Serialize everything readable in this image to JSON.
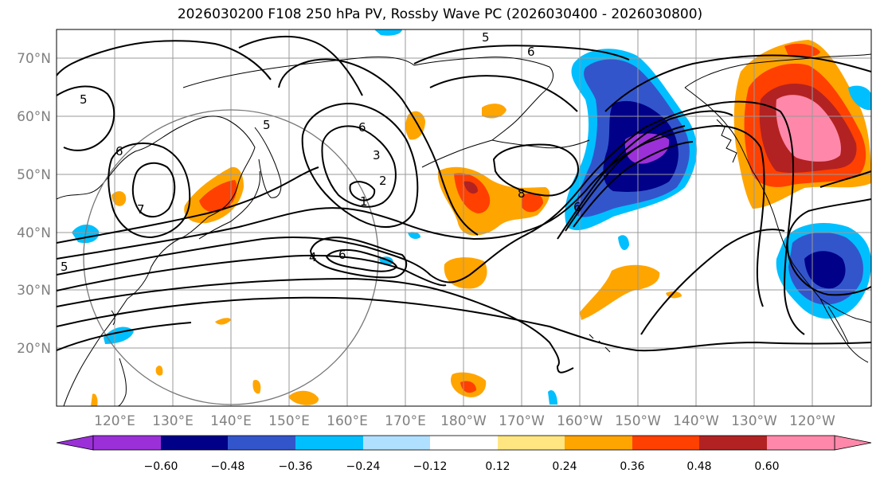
{
  "title": "2026030200 F108 250 hPa PV, Rossby Wave PC (2026030400 - 2026030800)",
  "lat_labels": [
    "70°N",
    "60°N",
    "50°N",
    "40°N",
    "30°N",
    "20°N"
  ],
  "lon_labels": [
    "120°E",
    "130°E",
    "140°E",
    "150°E",
    "160°E",
    "170°E",
    "180°W",
    "170°W",
    "160°W",
    "150°W",
    "140°W",
    "130°W",
    "120°W"
  ],
  "contour_labels": [
    "5",
    "6",
    "5",
    "5",
    "6",
    "6",
    "3",
    "2",
    "1",
    "8",
    "7",
    "6",
    "4",
    "6",
    "5"
  ],
  "colorbar": {
    "colors": [
      "#9b30d9",
      "#000088",
      "#3355cc",
      "#00bfff",
      "#b0e0ff",
      "#ffffff",
      "#ffe680",
      "#ffa500",
      "#ff4000",
      "#b22222",
      "#ff88aa"
    ],
    "tick_labels": [
      "−0.60",
      "−0.48",
      "−0.36",
      "−0.24",
      "−0.12",
      "0.12",
      "0.24",
      "0.36",
      "0.48",
      "0.60"
    ]
  },
  "chart_data": {
    "type": "map",
    "title": "2026030200 F108 250 hPa PV, Rossby Wave PC (2026030400 - 2026030800)",
    "lat_range": [
      10,
      75
    ],
    "lon_range": [
      110,
      250
    ],
    "shading_levels": [
      -0.6,
      -0.48,
      -0.36,
      -0.24,
      -0.12,
      0.12,
      0.24,
      0.36,
      0.48,
      0.6
    ],
    "contour_values": [
      1,
      2,
      3,
      4,
      5,
      6,
      7,
      8
    ]
  }
}
